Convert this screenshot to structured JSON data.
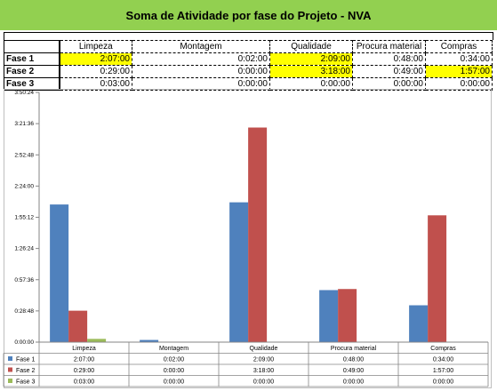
{
  "title": "Soma de Atividade por fase do Projeto - NVA",
  "table": {
    "headers": [
      "Limpeza",
      "Montagem",
      "Qualidade",
      "Procura material",
      "Compras"
    ],
    "rows": [
      {
        "label": "Fase 1",
        "values": [
          "2:07:00",
          "0:02:00",
          "2:09:00",
          "0:48:00",
          "0:34:00"
        ],
        "highlight": [
          true,
          false,
          true,
          false,
          false
        ]
      },
      {
        "label": "Fase 2",
        "values": [
          "0:29:00",
          "0:00:00",
          "3:18:00",
          "0:49:00",
          "1:57:00"
        ],
        "highlight": [
          false,
          false,
          true,
          false,
          true
        ]
      },
      {
        "label": "Fase 3",
        "values": [
          "0:03:00",
          "0:00:00",
          "0:00:00",
          "0:00:00",
          "0:00:00"
        ],
        "highlight": [
          false,
          false,
          false,
          false,
          false
        ]
      }
    ],
    "highlight_color": "#ffff00"
  },
  "chart_data": {
    "type": "bar",
    "categories": [
      "Limpeza",
      "Montagem",
      "Qualidade",
      "Procura material",
      "Compras"
    ],
    "series": [
      {
        "name": "Fase 1",
        "color": "#4f81bd",
        "values_min": [
          127,
          2,
          129,
          48,
          34
        ],
        "labels": [
          "2:07:00",
          "0:02:00",
          "2:09:00",
          "0:48:00",
          "0:34:00"
        ]
      },
      {
        "name": "Fase 2",
        "color": "#c0504d",
        "values_min": [
          29,
          0,
          198,
          49,
          117
        ],
        "labels": [
          "0:29:00",
          "0:00:00",
          "3:18:00",
          "0:49:00",
          "1:57:00"
        ]
      },
      {
        "name": "Fase 3",
        "color": "#9bbb59",
        "values_min": [
          3,
          0,
          0,
          0,
          0
        ],
        "labels": [
          "0:03:00",
          "0:00:00",
          "0:00:00",
          "0:00:00",
          "0:00:00"
        ]
      }
    ],
    "y_ticks": [
      "0:00:00",
      "0:28:48",
      "0:57:36",
      "1:26:24",
      "1:55:12",
      "2:24:00",
      "2:52:48",
      "3:21:36",
      "3:50:24"
    ],
    "y_tick_minutes": [
      0,
      28.8,
      57.6,
      86.4,
      115.2,
      144,
      172.8,
      201.6,
      230.4
    ],
    "ylim_minutes": [
      0,
      230.4
    ],
    "legend": "data table below plot",
    "grid": false
  }
}
